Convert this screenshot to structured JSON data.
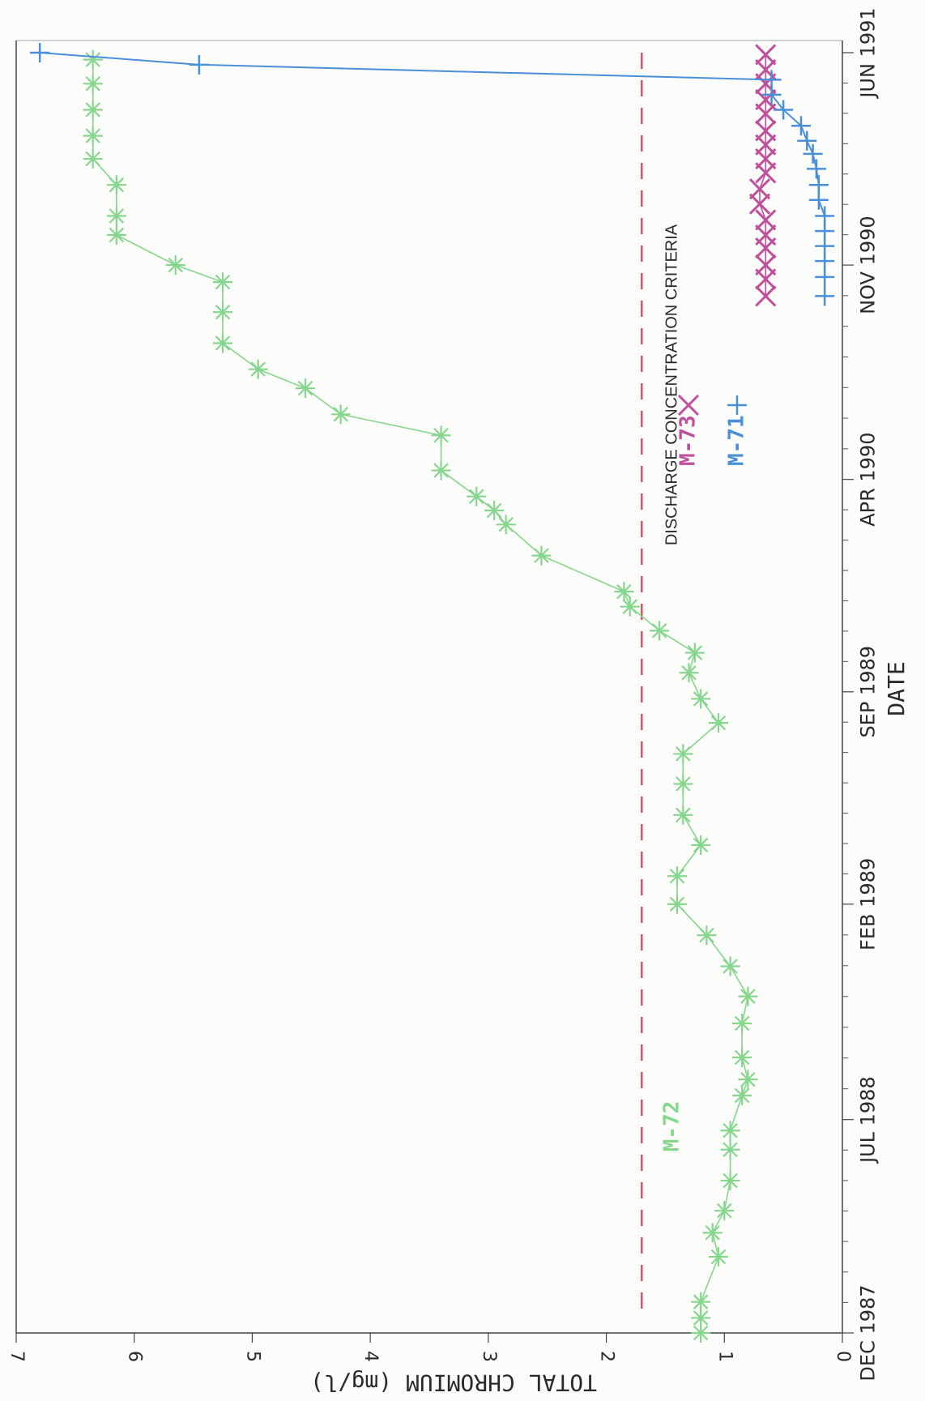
{
  "chart_data": {
    "type": "line",
    "title": "",
    "ylabel": "TOTAL CHROMIUM (mg/l)",
    "xlabel": "DATE",
    "ylim": [
      0,
      7
    ],
    "yticks": [
      "0",
      "1",
      "2",
      "3",
      "4",
      "5",
      "6",
      "7"
    ],
    "xlim": [
      "1987-12-01",
      "1991-06-01"
    ],
    "date_labels": [
      {
        "date": "1987-12-01",
        "label": "DEC 1987"
      },
      {
        "date": "1988-07-01",
        "label": "JUL 1988"
      },
      {
        "date": "1989-02-01",
        "label": "FEB 1989"
      },
      {
        "date": "1989-09-01",
        "label": "SEP 1989"
      },
      {
        "date": "1990-04-01",
        "label": "APR 1990"
      },
      {
        "date": "1990-11-01",
        "label": "NOV 1990"
      },
      {
        "date": "1991-06-01",
        "label": "JUN 1991"
      }
    ],
    "minor_ticks_per_interval": 7,
    "grid": false,
    "reference_line": {
      "value": 1.7,
      "label": "DISCHARGE CONCENTRATION CRITERIA",
      "color": "#e05060"
    },
    "series": [
      {
        "name": "M-72",
        "marker": "asterisk",
        "color": "#86d68e",
        "x": [
          "1987-12-01",
          "1987-12-16",
          "1988-01-01",
          "1988-02-15",
          "1988-03-10",
          "1988-04-01",
          "1988-05-01",
          "1988-06-01",
          "1988-06-20",
          "1988-07-25",
          "1988-08-10",
          "1988-09-01",
          "1988-10-05",
          "1988-11-01",
          "1988-12-01",
          "1989-01-01",
          "1989-02-01",
          "1989-03-01",
          "1989-04-01",
          "1989-05-01",
          "1989-06-01",
          "1989-07-01",
          "1989-08-01",
          "1989-08-25",
          "1989-09-20",
          "1989-10-10",
          "1989-11-01",
          "1989-11-25",
          "1989-12-10",
          "1990-01-15",
          "1990-02-15",
          "1990-03-01",
          "1990-03-15",
          "1990-04-10",
          "1990-05-15",
          "1990-06-05",
          "1990-07-01",
          "1990-07-20",
          "1990-08-15",
          "1990-09-15",
          "1990-10-15",
          "1990-11-01",
          "1990-12-01",
          "1990-12-20",
          "1991-01-20",
          "1991-02-15",
          "1991-03-10",
          "1991-04-05",
          "1991-05-01",
          "1991-05-25"
        ],
        "y": [
          1.2,
          1.2,
          1.2,
          1.05,
          1.1,
          1.0,
          0.95,
          0.95,
          0.95,
          0.85,
          0.8,
          0.85,
          0.85,
          0.8,
          0.95,
          1.15,
          1.4,
          1.4,
          1.2,
          1.35,
          1.35,
          1.35,
          1.05,
          1.2,
          1.3,
          1.25,
          1.55,
          1.8,
          1.85,
          2.55,
          2.85,
          2.95,
          3.1,
          3.4,
          3.4,
          4.25,
          4.55,
          4.95,
          5.25,
          5.25,
          5.25,
          5.65,
          6.15,
          6.15,
          6.15,
          6.35,
          6.35,
          6.35,
          6.35,
          6.35
        ]
      },
      {
        "name": "M-73",
        "marker": "x",
        "color": "#c0509c",
        "x": [
          "1990-10-01",
          "1990-10-18",
          "1990-11-01",
          "1990-11-18",
          "1990-12-01",
          "1990-12-16",
          "1991-01-01",
          "1991-01-16",
          "1991-02-01",
          "1991-02-15",
          "1991-03-01",
          "1991-03-15",
          "1991-04-01",
          "1991-04-15",
          "1991-05-01",
          "1991-05-15",
          "1991-05-30"
        ],
        "y": [
          0.65,
          0.65,
          0.65,
          0.65,
          0.65,
          0.65,
          0.7,
          0.7,
          0.65,
          0.65,
          0.65,
          0.65,
          0.65,
          0.65,
          0.65,
          0.65,
          0.65
        ]
      },
      {
        "name": "M-71",
        "marker": "plus",
        "color": "#4a90d8",
        "x": [
          "1990-10-01",
          "1990-10-20",
          "1990-11-05",
          "1990-11-20",
          "1990-12-05",
          "1990-12-20",
          "1991-01-05",
          "1991-01-20",
          "1991-02-05",
          "1991-02-20",
          "1991-03-05",
          "1991-03-20",
          "1991-04-05",
          "1991-04-20",
          "1991-05-05",
          "1991-05-20",
          "1991-06-01"
        ],
        "y": [
          0.15,
          0.15,
          0.15,
          0.15,
          0.15,
          0.15,
          0.2,
          0.2,
          0.22,
          0.25,
          0.3,
          0.35,
          0.5,
          0.6,
          0.6,
          5.45,
          6.8
        ]
      }
    ],
    "legend": [
      {
        "label": "M-73",
        "marker": "x",
        "color": "#c0509c"
      },
      {
        "label": "M-71",
        "marker": "plus",
        "color": "#4a90d8"
      }
    ],
    "series_label": {
      "text": "M-72",
      "color": "#86d68e"
    }
  }
}
